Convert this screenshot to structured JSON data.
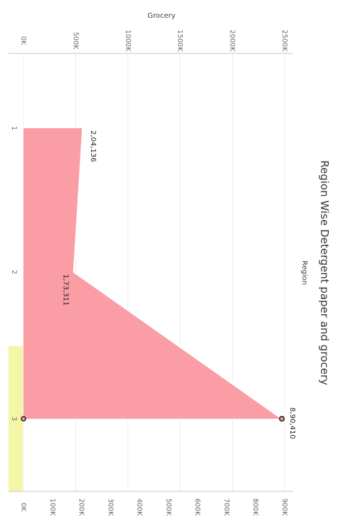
{
  "chart_data": {
    "type": "area",
    "title": "Region Wise Detergent paper and grocery",
    "xlabel": "Region",
    "categories": [
      "1",
      "2",
      "3"
    ],
    "series": [
      {
        "name": "",
        "axis": "grocery",
        "values": [
          575000,
          480000,
          2500000
        ],
        "color": "#d1dce1"
      },
      {
        "name": "",
        "axis": "detergents_paper",
        "values": [
          204136,
          173311,
          890410
        ],
        "color": "#fb9da5"
      }
    ],
    "data_labels": [
      "2,04,136",
      "1,73,311",
      "8,90,410"
    ],
    "axes": {
      "grocery": {
        "label": "Grocery",
        "range": [
          0,
          2500000
        ],
        "ticks": [
          0,
          500000,
          1000000,
          1500000,
          2000000,
          2500000
        ],
        "tick_labels": [
          "0K",
          "500K",
          "1000K",
          "1500K",
          "2000K",
          "2500K"
        ]
      },
      "detergents_paper": {
        "label": "",
        "range": [
          0,
          900000
        ],
        "ticks": [
          0,
          100000,
          200000,
          300000,
          400000,
          500000,
          600000,
          700000,
          800000,
          900000
        ],
        "tick_labels": [
          "0K",
          "100K",
          "200K",
          "300K",
          "400K",
          "500K",
          "600K",
          "700K",
          "800K",
          "900K"
        ]
      }
    },
    "highlight": {
      "category": "3",
      "color": "#f4f5a6"
    },
    "grid": true,
    "orientation": "rotated-90"
  }
}
